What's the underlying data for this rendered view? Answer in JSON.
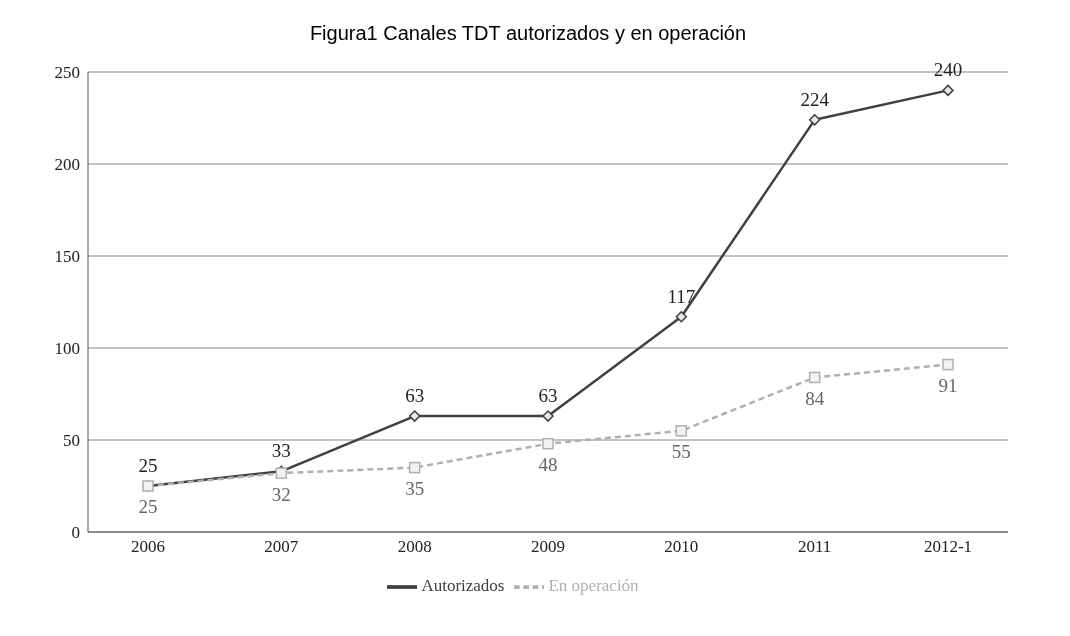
{
  "chart_data": {
    "type": "line",
    "title": "Figura1 Canales TDT autorizados y en operación",
    "categories": [
      "2006",
      "2007",
      "2008",
      "2009",
      "2010",
      "2011",
      "2012-1"
    ],
    "series": [
      {
        "name": "Autorizados",
        "color": "#404040",
        "values": [
          25,
          33,
          63,
          63,
          117,
          224,
          240
        ],
        "marker": "diamond",
        "line_style": "solid"
      },
      {
        "name": "En operación",
        "color": "#b0b0b0",
        "values": [
          25,
          32,
          35,
          48,
          55,
          84,
          91
        ],
        "marker": "square",
        "line_style": "dashed"
      }
    ],
    "ylim": [
      0,
      250
    ],
    "yticks": [
      0,
      50,
      100,
      150,
      200,
      250
    ],
    "grid": "y",
    "legend": "bottom",
    "data_labels": true
  }
}
